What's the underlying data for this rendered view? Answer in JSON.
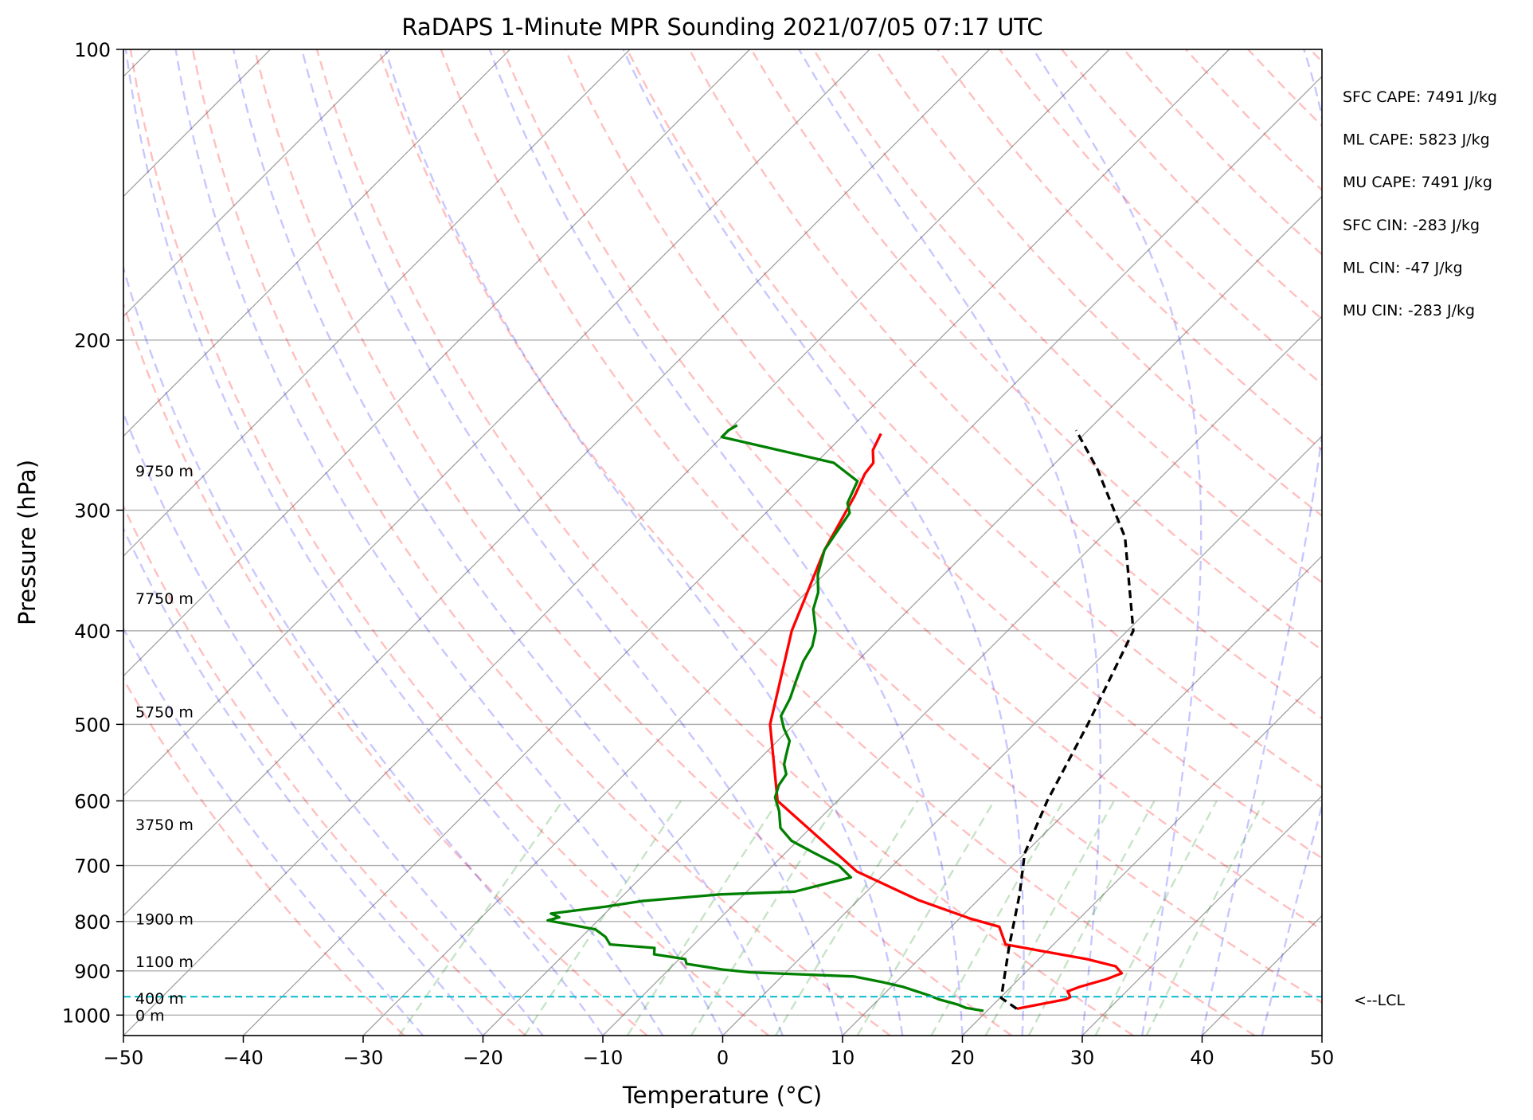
{
  "chart_data": {
    "type": "line",
    "title": "RaDAPS 1-Minute MPR Sounding 2021/07/05 07:17 UTC",
    "xlabel": "Temperature (°C)",
    "ylabel": "Pressure (hPa)",
    "xlim": [
      -50,
      50
    ],
    "ylim": [
      1050,
      100
    ],
    "y_scale": "log",
    "x_ticks": [
      "−50",
      "−40",
      "−30",
      "−20",
      "−10",
      "0",
      "10",
      "20",
      "30",
      "40",
      "50"
    ],
    "y_ticks": [
      "100",
      "200",
      "300",
      "400",
      "500",
      "600",
      "700",
      "800",
      "900",
      "1000"
    ],
    "skew": 1.0,
    "grid": "horizontal isobars",
    "series": [
      {
        "role": "temperature",
        "color": "#ff0000",
        "points": [
          [
            -37,
            250
          ],
          [
            -36.3,
            260
          ],
          [
            -35.2,
            268
          ],
          [
            -35,
            275
          ],
          [
            -34,
            290
          ],
          [
            -32,
            330
          ],
          [
            -28,
            400
          ],
          [
            -22,
            500
          ],
          [
            -15,
            600
          ],
          [
            -2.5,
            710
          ],
          [
            5,
            760
          ],
          [
            11,
            795
          ],
          [
            14,
            810
          ],
          [
            16,
            845
          ],
          [
            20,
            860
          ],
          [
            24,
            875
          ],
          [
            27,
            890
          ],
          [
            28.1,
            905
          ],
          [
            27.3,
            918
          ],
          [
            25.7,
            935
          ],
          [
            25.1,
            945
          ],
          [
            25.8,
            958
          ],
          [
            25.6,
            963
          ],
          [
            22.3,
            985
          ]
        ]
      },
      {
        "role": "dewpoint",
        "color": "#008000",
        "points": [
          [
            -49.7,
            245
          ],
          [
            -50,
            248
          ],
          [
            -50,
            252
          ],
          [
            -38.5,
            268
          ],
          [
            -35,
            280
          ],
          [
            -34,
            295
          ],
          [
            -33,
            302
          ],
          [
            -32,
            330
          ],
          [
            -30.5,
            350
          ],
          [
            -29,
            365
          ],
          [
            -28,
            380
          ],
          [
            -26,
            400
          ],
          [
            -25,
            415
          ],
          [
            -24.5,
            430
          ],
          [
            -23.5,
            450
          ],
          [
            -22.5,
            470
          ],
          [
            -21.8,
            490
          ],
          [
            -20.5,
            505
          ],
          [
            -19,
            520
          ],
          [
            -18,
            540
          ],
          [
            -17.5,
            550
          ],
          [
            -16.5,
            563
          ],
          [
            -16.2,
            578
          ],
          [
            -15.5,
            595
          ],
          [
            -14,
            615
          ],
          [
            -12.5,
            640
          ],
          [
            -10.5,
            660
          ],
          [
            -7.5,
            680
          ],
          [
            -4.5,
            700
          ],
          [
            -2.5,
            720
          ],
          [
            -6,
            745
          ],
          [
            -12,
            750
          ],
          [
            -18,
            762
          ],
          [
            -20.5,
            772
          ],
          [
            -24.5,
            785
          ],
          [
            -23.5,
            792
          ],
          [
            -24.2,
            798
          ],
          [
            -19.5,
            815
          ],
          [
            -18,
            830
          ],
          [
            -17,
            845
          ],
          [
            -13,
            852
          ],
          [
            -12.5,
            865
          ],
          [
            -9.5,
            875
          ],
          [
            -9,
            885
          ],
          [
            -5.5,
            897
          ],
          [
            -3,
            903
          ],
          [
            2,
            908
          ],
          [
            6,
            912
          ],
          [
            9,
            925
          ],
          [
            11,
            935
          ],
          [
            12.5,
            945
          ],
          [
            14,
            955
          ],
          [
            15,
            963
          ],
          [
            17,
            975
          ],
          [
            18,
            983
          ],
          [
            19.7,
            990
          ]
        ]
      },
      {
        "role": "parcel",
        "color": "#000000",
        "style": "dashed",
        "points": [
          [
            22.3,
            985
          ],
          [
            20.1,
            960
          ],
          [
            16.5,
            850
          ],
          [
            13,
            750
          ],
          [
            10,
            680
          ],
          [
            7.5,
            600
          ],
          [
            4.5,
            500
          ],
          [
            0.5,
            400
          ],
          [
            -8,
            320
          ],
          [
            -16,
            272
          ],
          [
            -21,
            248
          ]
        ]
      }
    ],
    "lcl": {
      "pressure_hpa": 957,
      "label": "<--LCL"
    },
    "height_labels": [
      {
        "label": "0 m",
        "pressure_hpa": 1000
      },
      {
        "label": "400 m",
        "pressure_hpa": 960
      },
      {
        "label": "1100 m",
        "pressure_hpa": 880
      },
      {
        "label": "1900 m",
        "pressure_hpa": 795
      },
      {
        "label": "3750 m",
        "pressure_hpa": 635
      },
      {
        "label": "5750 m",
        "pressure_hpa": 485
      },
      {
        "label": "7750 m",
        "pressure_hpa": 370
      },
      {
        "label": "9750 m",
        "pressure_hpa": 273
      }
    ],
    "indices": [
      "SFC CAPE: 7491 J/kg",
      "ML CAPE: 5823 J/kg",
      "MU CAPE: 7491 J/kg",
      "SFC CIN: -283 J/kg",
      "ML CIN: -47 J/kg",
      "MU CIN: -283 J/kg"
    ],
    "colors": {
      "isobar": "#b0b0b0",
      "isotherm": "#a0a0a0",
      "dry_adiabat": "#ff0000",
      "moist_adiabat": "#0000ff",
      "mixing_ratio": "#008000",
      "lcl_line": "#17becf"
    }
  }
}
